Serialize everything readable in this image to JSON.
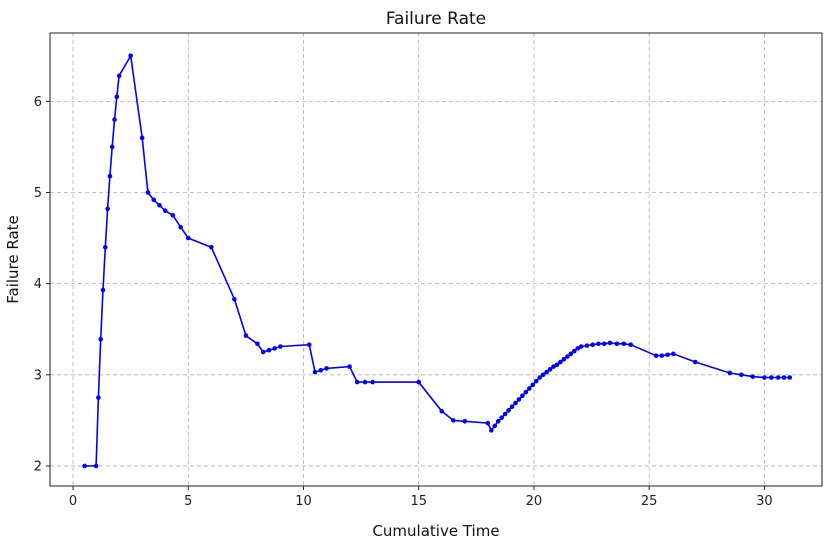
{
  "chart_data": {
    "type": "line",
    "title": "Failure Rate",
    "xlabel": "Cumulative Time",
    "ylabel": "Failure Rate",
    "xlim": [
      -1,
      32.5
    ],
    "ylim": [
      1.78,
      6.75
    ],
    "xticks": [
      0,
      5,
      10,
      15,
      20,
      25,
      30
    ],
    "yticks": [
      2,
      3,
      4,
      5,
      6
    ],
    "grid": true,
    "line_color": "#0000ff",
    "series": [
      {
        "x": [
          0.5,
          1.0,
          1.1,
          1.2,
          1.3,
          1.4,
          1.5,
          1.6,
          1.7,
          1.8,
          1.9,
          2.0,
          2.5,
          3.0,
          3.25,
          3.5,
          3.75,
          4.0,
          4.33,
          4.67,
          5.0,
          6.0,
          7.0,
          7.5,
          8.0,
          8.25,
          8.5,
          8.75,
          9.0,
          10.25,
          10.5,
          10.75,
          11.0,
          12.0,
          12.33,
          12.67,
          13.0,
          15.0,
          16.0,
          16.5,
          17.0,
          18.0,
          18.15,
          18.3,
          18.45,
          18.6,
          18.75,
          18.9,
          19.05,
          19.2,
          19.35,
          19.5,
          19.65,
          19.8,
          19.95,
          20.1,
          20.25,
          20.4,
          20.55,
          20.7,
          20.85,
          21.0,
          21.15,
          21.3,
          21.45,
          21.6,
          21.75,
          21.9,
          22.05,
          22.3,
          22.55,
          22.8,
          23.05,
          23.3,
          23.6,
          23.9,
          24.2,
          25.3,
          25.55,
          25.8,
          26.05,
          27.0,
          28.5,
          29.0,
          29.5,
          30.0,
          30.3,
          30.6,
          30.85,
          31.1
        ],
        "y": [
          2.0,
          2.0,
          2.75,
          3.39,
          3.93,
          4.4,
          4.82,
          5.18,
          5.5,
          5.8,
          6.05,
          6.28,
          6.5,
          5.6,
          5.0,
          4.92,
          4.86,
          4.8,
          4.75,
          4.62,
          4.5,
          4.4,
          3.83,
          3.43,
          3.34,
          3.25,
          3.27,
          3.29,
          3.31,
          3.33,
          3.03,
          3.05,
          3.07,
          3.09,
          2.92,
          2.92,
          2.92,
          2.92,
          2.6,
          2.5,
          2.49,
          2.47,
          2.39,
          2.44,
          2.49,
          2.53,
          2.57,
          2.61,
          2.65,
          2.69,
          2.73,
          2.77,
          2.81,
          2.85,
          2.89,
          2.93,
          2.97,
          3.0,
          3.03,
          3.06,
          3.09,
          3.11,
          3.14,
          3.17,
          3.2,
          3.23,
          3.26,
          3.29,
          3.31,
          3.32,
          3.33,
          3.34,
          3.34,
          3.35,
          3.34,
          3.34,
          3.33,
          3.21,
          3.21,
          3.22,
          3.23,
          3.14,
          3.02,
          3.0,
          2.98,
          2.97,
          2.97,
          2.97,
          2.97,
          2.97
        ]
      }
    ]
  }
}
